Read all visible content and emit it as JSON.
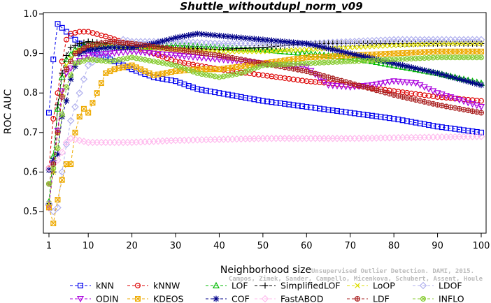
{
  "chart_data": {
    "type": "line",
    "title": "Shuttle_withoutdupl_norm_v09",
    "xlabel": "Neighborhood size",
    "ylabel": "ROC AUC",
    "xlim": [
      1,
      100
    ],
    "ylim": [
      0.47,
      1.0
    ],
    "x_ticks": [
      "1",
      "10",
      "20",
      "30",
      "40",
      "50",
      "60",
      "70",
      "80",
      "90",
      "100"
    ],
    "y_ticks": [
      "0.5",
      "0.6",
      "0.7",
      "0.8",
      "0.9",
      "1.0"
    ],
    "grid": false,
    "legend_position": "bottom",
    "watermark": [
      "Campos, Zimek, Sander, Campello, Micenkova, Schubert, Assent, Houle",
      "Unsupervised Outlier Detection. DAMI, 2015."
    ],
    "series": [
      {
        "name": "kNN",
        "color": "#0000ee",
        "marker": "square",
        "points": [
          [
            1,
            0.75
          ],
          [
            2,
            0.885
          ],
          [
            3,
            0.975
          ],
          [
            4,
            0.965
          ],
          [
            5,
            0.955
          ],
          [
            6,
            0.945
          ],
          [
            8,
            0.925
          ],
          [
            10,
            0.91
          ],
          [
            15,
            0.885
          ],
          [
            20,
            0.86
          ],
          [
            25,
            0.84
          ],
          [
            30,
            0.83
          ],
          [
            35,
            0.81
          ],
          [
            40,
            0.8
          ],
          [
            50,
            0.78
          ],
          [
            60,
            0.765
          ],
          [
            70,
            0.75
          ],
          [
            80,
            0.735
          ],
          [
            90,
            0.715
          ],
          [
            100,
            0.7
          ]
        ]
      },
      {
        "name": "kNNW",
        "color": "#dd0000",
        "marker": "circle",
        "points": [
          [
            1,
            0.61
          ],
          [
            2,
            0.735
          ],
          [
            3,
            0.8
          ],
          [
            4,
            0.88
          ],
          [
            5,
            0.935
          ],
          [
            6,
            0.95
          ],
          [
            8,
            0.955
          ],
          [
            10,
            0.955
          ],
          [
            15,
            0.94
          ],
          [
            20,
            0.92
          ],
          [
            30,
            0.88
          ],
          [
            40,
            0.86
          ],
          [
            50,
            0.845
          ],
          [
            60,
            0.83
          ],
          [
            70,
            0.82
          ],
          [
            80,
            0.805
          ],
          [
            90,
            0.79
          ],
          [
            100,
            0.78
          ]
        ]
      },
      {
        "name": "LOF",
        "color": "#00bb00",
        "marker": "triangle",
        "points": [
          [
            1,
            0.525
          ],
          [
            2,
            0.64
          ],
          [
            3,
            0.76
          ],
          [
            4,
            0.84
          ],
          [
            5,
            0.885
          ],
          [
            7,
            0.91
          ],
          [
            10,
            0.925
          ],
          [
            15,
            0.92
          ],
          [
            20,
            0.915
          ],
          [
            30,
            0.92
          ],
          [
            40,
            0.915
          ],
          [
            50,
            0.91
          ],
          [
            60,
            0.9
          ],
          [
            70,
            0.89
          ],
          [
            80,
            0.87
          ],
          [
            90,
            0.85
          ],
          [
            100,
            0.825
          ]
        ]
      },
      {
        "name": "SimplifiedLOF",
        "color": "#000000",
        "marker": "plus",
        "points": [
          [
            1,
            0.52
          ],
          [
            2,
            0.6
          ],
          [
            3,
            0.77
          ],
          [
            4,
            0.85
          ],
          [
            5,
            0.895
          ],
          [
            6,
            0.915
          ],
          [
            8,
            0.925
          ],
          [
            10,
            0.93
          ],
          [
            15,
            0.925
          ],
          [
            20,
            0.92
          ],
          [
            30,
            0.915
          ],
          [
            40,
            0.91
          ],
          [
            50,
            0.915
          ],
          [
            60,
            0.925
          ],
          [
            70,
            0.925
          ],
          [
            80,
            0.925
          ],
          [
            90,
            0.925
          ],
          [
            100,
            0.925
          ]
        ]
      },
      {
        "name": "LoOP",
        "color": "#dddd00",
        "marker": "x",
        "points": [
          [
            1,
            0.52
          ],
          [
            2,
            0.6
          ],
          [
            3,
            0.7
          ],
          [
            4,
            0.8
          ],
          [
            5,
            0.87
          ],
          [
            7,
            0.905
          ],
          [
            10,
            0.915
          ],
          [
            15,
            0.92
          ],
          [
            20,
            0.915
          ],
          [
            30,
            0.91
          ],
          [
            40,
            0.905
          ],
          [
            50,
            0.905
          ],
          [
            60,
            0.91
          ],
          [
            70,
            0.915
          ],
          [
            80,
            0.92
          ],
          [
            90,
            0.925
          ],
          [
            100,
            0.925
          ]
        ]
      },
      {
        "name": "LDOF",
        "color": "#b0b0ee",
        "marker": "diamond",
        "points": [
          [
            1,
            0.52
          ],
          [
            2,
            0.5
          ],
          [
            3,
            0.51
          ],
          [
            4,
            0.6
          ],
          [
            5,
            0.67
          ],
          [
            6,
            0.73
          ],
          [
            8,
            0.8
          ],
          [
            10,
            0.87
          ],
          [
            15,
            0.91
          ],
          [
            18,
            0.935
          ],
          [
            20,
            0.93
          ],
          [
            30,
            0.93
          ],
          [
            40,
            0.925
          ],
          [
            50,
            0.925
          ],
          [
            60,
            0.925
          ],
          [
            70,
            0.93
          ],
          [
            80,
            0.935
          ],
          [
            90,
            0.935
          ],
          [
            100,
            0.935
          ]
        ]
      },
      {
        "name": "ODIN",
        "color": "#aa00dd",
        "marker": "triangle-down",
        "points": [
          [
            1,
            0.51
          ],
          [
            2,
            0.62
          ],
          [
            3,
            0.705
          ],
          [
            4,
            0.805
          ],
          [
            5,
            0.85
          ],
          [
            7,
            0.875
          ],
          [
            10,
            0.895
          ],
          [
            15,
            0.9
          ],
          [
            20,
            0.905
          ],
          [
            30,
            0.895
          ],
          [
            40,
            0.885
          ],
          [
            50,
            0.875
          ],
          [
            60,
            0.865
          ],
          [
            65,
            0.82
          ],
          [
            70,
            0.815
          ],
          [
            75,
            0.82
          ],
          [
            80,
            0.83
          ],
          [
            85,
            0.825
          ],
          [
            90,
            0.8
          ],
          [
            100,
            0.765
          ]
        ]
      },
      {
        "name": "KDEOS",
        "color": "#eeaa00",
        "marker": "square-x",
        "points": [
          [
            1,
            0.51
          ],
          [
            2,
            0.47
          ],
          [
            3,
            0.53
          ],
          [
            4,
            0.58
          ],
          [
            5,
            0.62
          ],
          [
            6,
            0.62
          ],
          [
            7,
            0.7
          ],
          [
            8,
            0.74
          ],
          [
            9,
            0.76
          ],
          [
            10,
            0.75
          ],
          [
            12,
            0.8
          ],
          [
            14,
            0.85
          ],
          [
            16,
            0.86
          ],
          [
            20,
            0.87
          ],
          [
            25,
            0.845
          ],
          [
            30,
            0.855
          ],
          [
            35,
            0.86
          ],
          [
            40,
            0.86
          ],
          [
            50,
            0.875
          ],
          [
            60,
            0.89
          ],
          [
            70,
            0.895
          ],
          [
            80,
            0.9
          ],
          [
            90,
            0.905
          ],
          [
            100,
            0.905
          ]
        ]
      },
      {
        "name": "COF",
        "color": "#000088",
        "marker": "star",
        "points": [
          [
            1,
            0.605
          ],
          [
            2,
            0.63
          ],
          [
            3,
            0.645
          ],
          [
            4,
            0.74
          ],
          [
            5,
            0.78
          ],
          [
            6,
            0.835
          ],
          [
            8,
            0.9
          ],
          [
            10,
            0.91
          ],
          [
            15,
            0.915
          ],
          [
            20,
            0.915
          ],
          [
            25,
            0.925
          ],
          [
            30,
            0.94
          ],
          [
            35,
            0.95
          ],
          [
            40,
            0.945
          ],
          [
            50,
            0.935
          ],
          [
            60,
            0.925
          ],
          [
            70,
            0.9
          ],
          [
            80,
            0.875
          ],
          [
            90,
            0.85
          ],
          [
            100,
            0.82
          ]
        ]
      },
      {
        "name": "FastABOD",
        "color": "#ffbbee",
        "marker": "diamond",
        "points": [
          [
            1,
            0.61
          ],
          [
            2,
            0.62
          ],
          [
            3,
            0.63
          ],
          [
            4,
            0.65
          ],
          [
            5,
            0.675
          ],
          [
            6,
            0.685
          ],
          [
            8,
            0.68
          ],
          [
            10,
            0.675
          ],
          [
            20,
            0.675
          ],
          [
            30,
            0.68
          ],
          [
            50,
            0.685
          ],
          [
            70,
            0.685
          ],
          [
            100,
            0.69
          ]
        ]
      },
      {
        "name": "LDF",
        "color": "#aa2222",
        "marker": "circle-plus",
        "points": [
          [
            1,
            0.57
          ],
          [
            2,
            0.62
          ],
          [
            3,
            0.7
          ],
          [
            4,
            0.79
          ],
          [
            5,
            0.86
          ],
          [
            7,
            0.9
          ],
          [
            10,
            0.92
          ],
          [
            15,
            0.93
          ],
          [
            20,
            0.925
          ],
          [
            30,
            0.91
          ],
          [
            40,
            0.895
          ],
          [
            50,
            0.875
          ],
          [
            60,
            0.855
          ],
          [
            70,
            0.825
          ],
          [
            80,
            0.795
          ],
          [
            90,
            0.77
          ],
          [
            100,
            0.75
          ]
        ]
      },
      {
        "name": "INFLO",
        "color": "#88cc33",
        "marker": "circle-x",
        "points": [
          [
            1,
            0.57
          ],
          [
            2,
            0.61
          ],
          [
            3,
            0.66
          ],
          [
            4,
            0.745
          ],
          [
            5,
            0.815
          ],
          [
            7,
            0.875
          ],
          [
            10,
            0.885
          ],
          [
            15,
            0.88
          ],
          [
            20,
            0.89
          ],
          [
            25,
            0.88
          ],
          [
            30,
            0.87
          ],
          [
            35,
            0.85
          ],
          [
            40,
            0.84
          ],
          [
            45,
            0.85
          ],
          [
            50,
            0.87
          ],
          [
            60,
            0.875
          ],
          [
            70,
            0.88
          ],
          [
            80,
            0.885
          ],
          [
            90,
            0.89
          ],
          [
            100,
            0.89
          ]
        ]
      }
    ]
  }
}
